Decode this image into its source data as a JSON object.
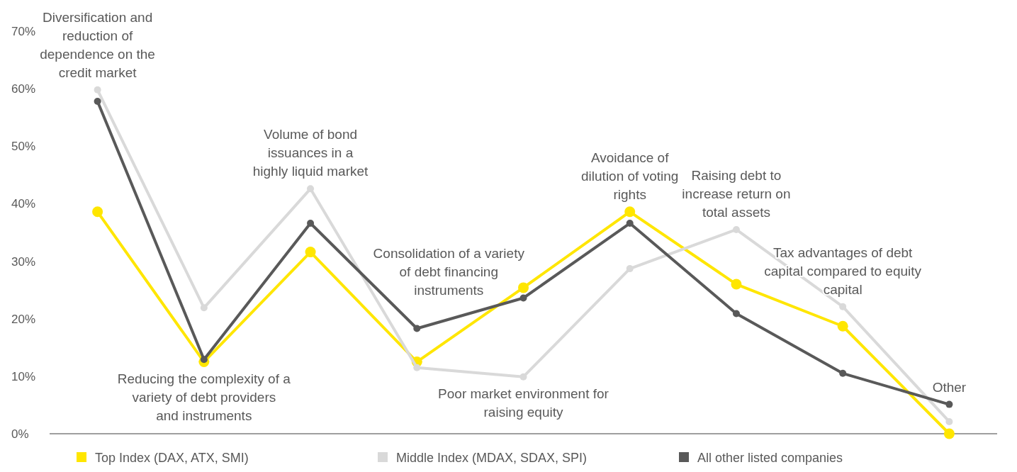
{
  "chart_data": {
    "type": "line",
    "categories": [
      "Diversification and reduction of dependence on the credit market",
      "Reducing the complexity of a variety of debt providers and instruments",
      "Volume of bond issuances in a highly liquid market",
      "Consolidation of a variety of debt financing instruments",
      "Poor market environment for raising equity",
      "Avoidance of dilution of voting rights",
      "Raising debt to increase return on total assets",
      "Tax advantages of debt capital compared to equity capital",
      "Other"
    ],
    "series": [
      {
        "name": "Top Index (DAX, ATX, SMI)",
        "color": "#ffe600",
        "values": [
          38.6,
          12.5,
          31.6,
          12.5,
          25.4,
          38.6,
          26.0,
          18.7,
          0
        ]
      },
      {
        "name": "Middle Index (MDAX, SDAX, SPI)",
        "color": "#d9d9d9",
        "values": [
          59.8,
          21.9,
          42.6,
          11.5,
          9.9,
          28.7,
          35.5,
          22.1,
          2.1
        ]
      },
      {
        "name": "All other listed companies",
        "color": "#595959",
        "values": [
          57.8,
          12.9,
          36.6,
          18.3,
          23.6,
          36.6,
          20.9,
          10.5,
          5.1
        ]
      }
    ],
    "ylim": [
      0,
      70
    ],
    "yticks": [
      {
        "value": 0,
        "label": "0%"
      },
      {
        "value": 10,
        "label": "10%"
      },
      {
        "value": 20,
        "label": "20%"
      },
      {
        "value": 30,
        "label": "30%"
      },
      {
        "value": 40,
        "label": "40%"
      },
      {
        "value": 50,
        "label": "50%"
      },
      {
        "value": 60,
        "label": "60%"
      },
      {
        "value": 70,
        "label": "70%"
      }
    ],
    "grid": false,
    "legend": "bottom",
    "marker": "circle",
    "line_style": "solid"
  }
}
